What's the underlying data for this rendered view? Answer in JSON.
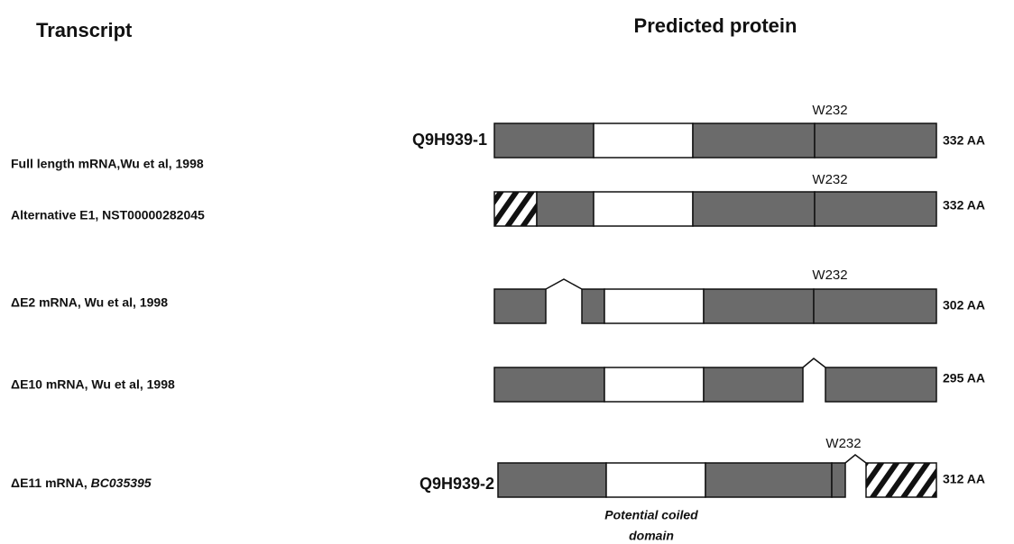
{
  "header": {
    "left": "Transcript",
    "right": "Predicted protein"
  },
  "rows": [
    {
      "label": "Full length mRNA,Wu et al, 1998",
      "protein": "Q9H939-1",
      "site": "W232",
      "length": "332 AA"
    },
    {
      "label": "Alternative E1, NST00000282045",
      "site": "W232",
      "length": "332 AA"
    },
    {
      "label": "ΔE2 mRNA, Wu et al, 1998",
      "site": "W232",
      "length": "302 AA"
    },
    {
      "label": "ΔE10 mRNA, Wu et al, 1998",
      "length": "295 AA"
    },
    {
      "label": "ΔE11 mRNA, ",
      "label_italic": "BC035395",
      "protein": "Q9H939-2",
      "site": "W232",
      "length": "312 AA"
    }
  ],
  "annotation": {
    "line1": "Potential coiled",
    "line2": "domain"
  }
}
